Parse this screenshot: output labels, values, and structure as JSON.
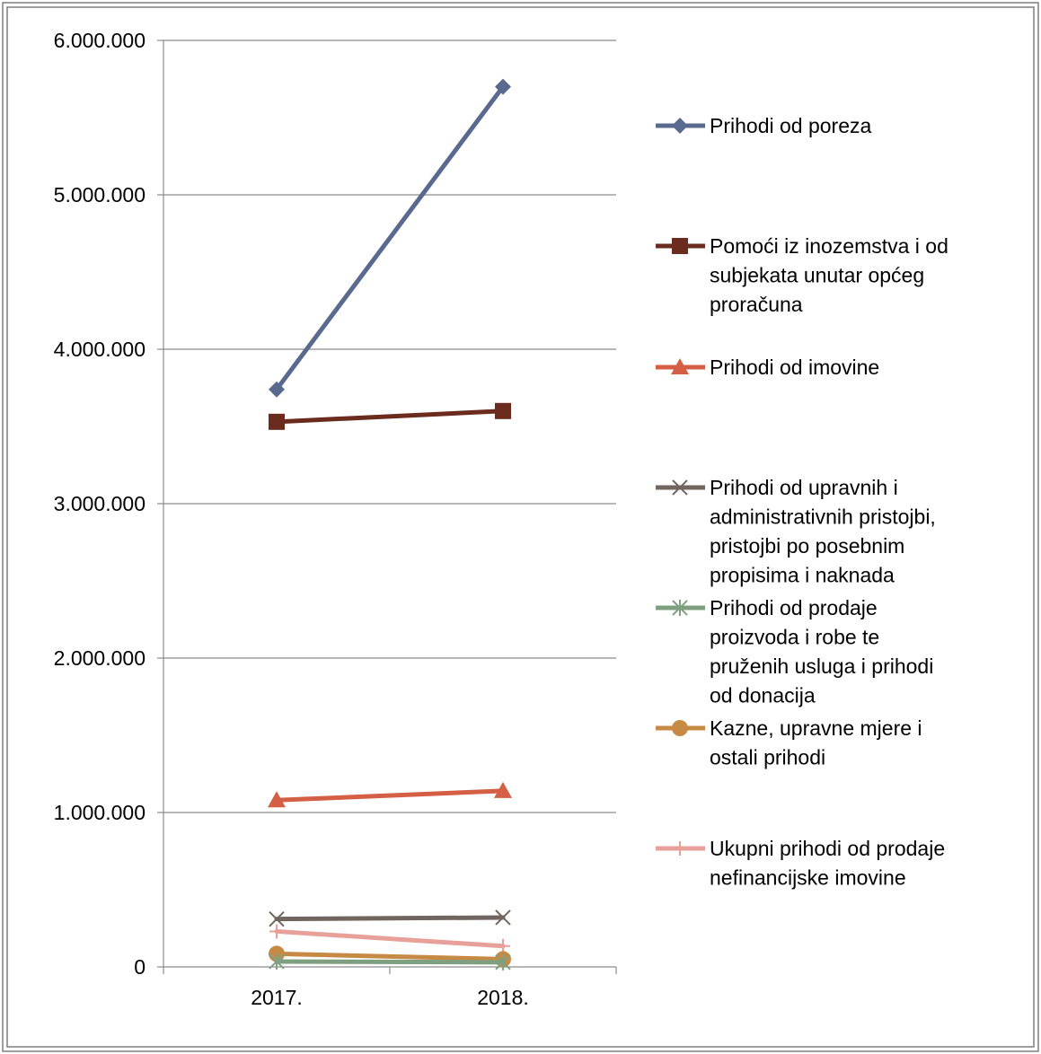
{
  "chart_data": {
    "type": "line",
    "title": "",
    "xlabel": "",
    "ylabel": "",
    "categories": [
      "2017.",
      "2018."
    ],
    "ylim": [
      0,
      6000000
    ],
    "yticks": [
      0,
      1000000,
      2000000,
      3000000,
      4000000,
      5000000,
      6000000
    ],
    "ytick_labels": [
      "0",
      "1.000.000",
      "2.000.000",
      "3.000.000",
      "4.000.000",
      "5.000.000",
      "6.000.000"
    ],
    "grid": "horizontal",
    "legend_position": "right",
    "series": [
      {
        "name": "Prihodi od poreza",
        "values": [
          3740000,
          5700000
        ],
        "color": "#5a6a8e",
        "marker": "diamond",
        "legend_lines": [
          "Prihodi od poreza"
        ]
      },
      {
        "name": "Pomoći iz inozemstva i od subjekata unutar općeg proračuna",
        "values": [
          3530000,
          3600000
        ],
        "color": "#6b2c1f",
        "marker": "square",
        "legend_lines": [
          "Pomoći iz inozemstva i od",
          "subjekata unutar općeg",
          "proračuna"
        ]
      },
      {
        "name": "Prihodi od imovine",
        "values": [
          1080000,
          1140000
        ],
        "color": "#d45f45",
        "marker": "triangle",
        "legend_lines": [
          "Prihodi od imovine"
        ]
      },
      {
        "name": "Prihodi od upravnih i administrativnih pristojbi, pristojbi po posebnim propisima i naknada",
        "values": [
          310000,
          320000
        ],
        "color": "#70655f",
        "marker": "x",
        "legend_lines": [
          "Prihodi od upravnih i",
          "administrativnih pristojbi,",
          "pristojbi po posebnim",
          "propisima i naknada"
        ]
      },
      {
        "name": "Prihodi od prodaje proizvoda i robe te pruženih usluga i prihodi od donacija",
        "values": [
          35000,
          30000
        ],
        "color": "#7ea081",
        "marker": "star",
        "legend_lines": [
          "Prihodi od prodaje",
          "proizvoda i robe te",
          "pruženih usluga i prihodi",
          "od donacija"
        ]
      },
      {
        "name": "Kazne, upravne mjere i ostali prihodi",
        "values": [
          85000,
          50000
        ],
        "color": "#c68a45",
        "marker": "circle",
        "legend_lines": [
          "Kazne, upravne mjere i",
          "ostali prihodi"
        ]
      },
      {
        "name": "Ukupni prihodi od prodaje nefinancijske imovine",
        "values": [
          230000,
          135000
        ],
        "color": "#e8a09a",
        "marker": "plus",
        "legend_lines": [
          "Ukupni prihodi od prodaje",
          "nefinancijske imovine"
        ]
      }
    ]
  }
}
